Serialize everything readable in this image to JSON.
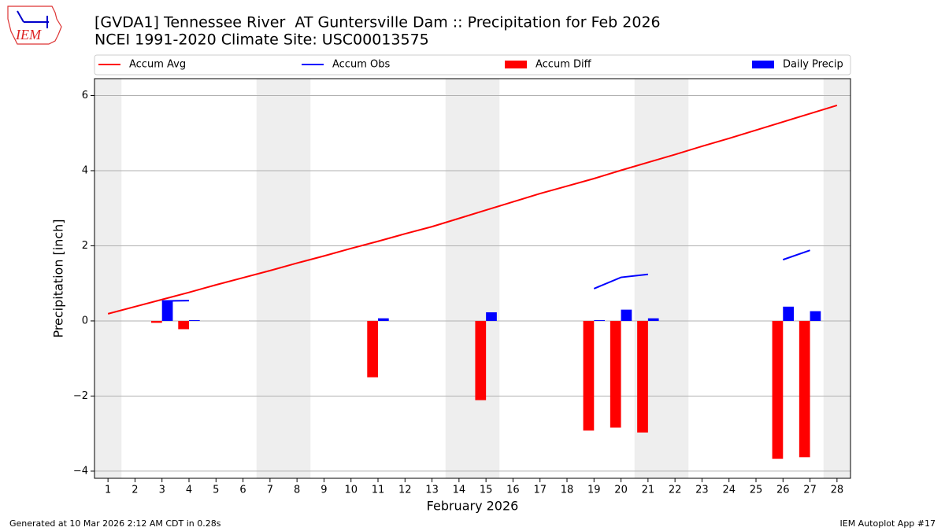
{
  "chart_data": {
    "type": "bar",
    "title": "[GVDA1] Tennessee River  AT Guntersville Dam :: Precipitation for Feb 2026",
    "subtitle": "NCEI 1991-2020 Climate Site: USC00013575",
    "x_label": "February 2026",
    "y_label": "Precipitation [inch]",
    "logo_text": "IEM",
    "footer_left": "Generated at 10 Mar 2026 2:12 AM CDT in 0.28s",
    "footer_right": "IEM Autoplot App #17",
    "x": [
      1,
      2,
      3,
      4,
      5,
      6,
      7,
      8,
      9,
      10,
      11,
      12,
      13,
      14,
      15,
      16,
      17,
      18,
      19,
      20,
      21,
      22,
      23,
      24,
      25,
      26,
      27,
      28
    ],
    "xlim": [
      0.5,
      28.5
    ],
    "xticks": [
      1,
      2,
      3,
      4,
      5,
      6,
      7,
      8,
      9,
      10,
      11,
      12,
      13,
      14,
      15,
      16,
      17,
      18,
      19,
      20,
      21,
      22,
      23,
      24,
      25,
      26,
      27,
      28
    ],
    "ylim": [
      -4.19,
      6.45
    ],
    "yticks": [
      {
        "value": -4,
        "label": "−4"
      },
      {
        "value": -2,
        "label": "−2"
      },
      0,
      2,
      4,
      6
    ],
    "grid": true,
    "legend": "top",
    "series": [
      {
        "name": "Accum Avg",
        "type": "line",
        "color": "#ff0000",
        "values": [
          0.19,
          0.38,
          0.57,
          0.76,
          0.96,
          1.15,
          1.34,
          1.54,
          1.73,
          1.93,
          2.12,
          2.32,
          2.51,
          2.73,
          2.95,
          3.17,
          3.39,
          3.59,
          3.79,
          4.01,
          4.22,
          4.43,
          4.65,
          4.86,
          5.08,
          5.3,
          5.52,
          5.74
        ]
      },
      {
        "name": "Accum Obs",
        "type": "line",
        "color": "#0000ff",
        "values": [
          null,
          null,
          0.53,
          0.54,
          null,
          null,
          null,
          null,
          null,
          null,
          null,
          null,
          null,
          null,
          null,
          null,
          null,
          null,
          0.86,
          1.16,
          1.24,
          null,
          null,
          null,
          null,
          1.63,
          1.88,
          null
        ]
      },
      {
        "name": "Accum Diff",
        "type": "bar",
        "color": "#ff0000",
        "values": [
          null,
          null,
          -0.05,
          -0.22,
          null,
          null,
          null,
          null,
          null,
          null,
          -1.5,
          null,
          null,
          null,
          -2.11,
          null,
          null,
          null,
          -2.92,
          -2.84,
          -2.97,
          null,
          null,
          null,
          null,
          -3.67,
          -3.63,
          null
        ]
      },
      {
        "name": "Daily Precip",
        "type": "bar",
        "color": "#0000ff",
        "values": [
          null,
          null,
          0.53,
          0.02,
          null,
          null,
          null,
          null,
          null,
          null,
          0.07,
          null,
          null,
          null,
          0.23,
          null,
          null,
          null,
          0.02,
          0.3,
          0.07,
          null,
          null,
          null,
          null,
          0.38,
          0.26,
          null
        ]
      }
    ]
  }
}
